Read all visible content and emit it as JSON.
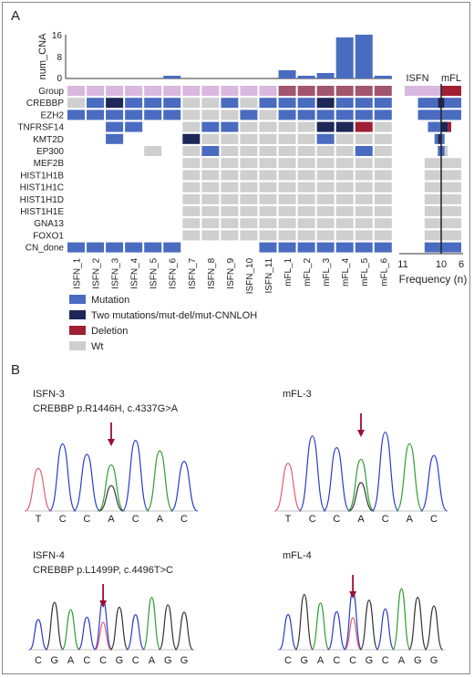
{
  "panel_a": {
    "label": "A",
    "num_cna": {
      "axis_label": "num_CNA",
      "ticks": [
        "16",
        "8",
        "0"
      ],
      "ylim": [
        0,
        16
      ],
      "values": [
        0,
        0,
        0,
        0,
        0,
        1,
        0,
        0,
        0,
        0,
        0,
        3,
        1,
        2,
        15,
        16,
        1
      ]
    },
    "samples": [
      "ISFN_1",
      "ISFN_2",
      "ISFN_3",
      "ISFN_4",
      "ISFN_5",
      "ISFN_6",
      "ISFN_7",
      "ISFN_8",
      "ISFN_9",
      "ISFN_10",
      "ISFN_11",
      "mFL_1",
      "mFL_2",
      "mFL_3",
      "mFL_4",
      "mFL_5",
      "mFL_6"
    ],
    "rows": [
      "Group",
      "CREBBP",
      "EZH2",
      "TNFRSF14",
      "KMT2D",
      "EP300",
      "MEF2B",
      "HIST1H1B",
      "HIST1H1C",
      "HIST1H1D",
      "HIST1H1E",
      "GNA13",
      "FOXO1",
      "CN_done"
    ],
    "groups": [
      "I",
      "I",
      "I",
      "I",
      "I",
      "I",
      "I",
      "I",
      "I",
      "I",
      "I",
      "M",
      "M",
      "M",
      "M",
      "M",
      "M"
    ],
    "matrix": [
      [
        "W",
        "M",
        "D",
        "M",
        "M",
        "M",
        "W",
        "W",
        "M",
        "W",
        "M",
        "M",
        "M",
        "D",
        "M",
        "M",
        "M"
      ],
      [
        "M",
        "M",
        "M",
        "M",
        "M",
        "M",
        "W",
        "W",
        "W",
        "M",
        "W",
        "M",
        "M",
        "M",
        "M",
        "M",
        "M"
      ],
      [
        "N",
        "N",
        "M",
        "M",
        "N",
        "N",
        "W",
        "M",
        "M",
        "W",
        "W",
        "W",
        "W",
        "D",
        "D",
        "X",
        "W"
      ],
      [
        "N",
        "N",
        "M",
        "N",
        "N",
        "N",
        "D",
        "W",
        "W",
        "W",
        "W",
        "W",
        "W",
        "M",
        "W",
        "W",
        "W"
      ],
      [
        "N",
        "N",
        "N",
        "N",
        "W",
        "N",
        "W",
        "M",
        "W",
        "W",
        "W",
        "W",
        "W",
        "W",
        "W",
        "M",
        "W"
      ],
      [
        "N",
        "N",
        "N",
        "N",
        "N",
        "N",
        "W",
        "W",
        "W",
        "W",
        "W",
        "W",
        "W",
        "W",
        "W",
        "W",
        "W"
      ],
      [
        "N",
        "N",
        "N",
        "N",
        "N",
        "N",
        "W",
        "W",
        "W",
        "W",
        "W",
        "W",
        "W",
        "W",
        "W",
        "W",
        "W"
      ],
      [
        "N",
        "N",
        "N",
        "N",
        "N",
        "N",
        "W",
        "W",
        "W",
        "W",
        "W",
        "W",
        "W",
        "W",
        "W",
        "W",
        "W"
      ],
      [
        "N",
        "N",
        "N",
        "N",
        "N",
        "N",
        "W",
        "W",
        "W",
        "W",
        "W",
        "W",
        "W",
        "W",
        "W",
        "W",
        "W"
      ],
      [
        "N",
        "N",
        "N",
        "N",
        "N",
        "N",
        "W",
        "W",
        "W",
        "W",
        "W",
        "W",
        "W",
        "W",
        "W",
        "W",
        "W"
      ],
      [
        "N",
        "N",
        "N",
        "N",
        "N",
        "N",
        "W",
        "W",
        "W",
        "W",
        "W",
        "W",
        "W",
        "W",
        "W",
        "W",
        "W"
      ],
      [
        "N",
        "N",
        "N",
        "N",
        "N",
        "N",
        "W",
        "W",
        "W",
        "W",
        "W",
        "W",
        "W",
        "W",
        "W",
        "W",
        "W"
      ]
    ],
    "cn_done": [
      1,
      1,
      1,
      1,
      1,
      1,
      0,
      0,
      0,
      0,
      1,
      1,
      1,
      1,
      1,
      1,
      1
    ],
    "legend": [
      {
        "key": "M",
        "label": "Mutation"
      },
      {
        "key": "D",
        "label": "Two mutations/mut-del/mut-CNNLOH"
      },
      {
        "key": "X",
        "label": "Deletion"
      },
      {
        "key": "W",
        "label": "Wt"
      }
    ],
    "colors": {
      "M": "#4a6cc0",
      "D": "#1d2758",
      "X": "#a01f33",
      "W": "#cfcfcf",
      "isfn_group": "#d8b8de",
      "mfl_group": "#a2566e",
      "frequency_mfl": "#a01f33"
    },
    "frequency": {
      "left_label": "ISFN",
      "right_label": "mFL",
      "ticks": [
        "11",
        "10",
        "6"
      ],
      "axis_title": "Frequency (n)",
      "bars": [
        {
          "isfn": 11,
          "mfl": 6
        },
        {
          "isfn": 6,
          "mfl": 6
        },
        {
          "isfn": 6,
          "mfl": 6
        },
        {
          "isfn": 3,
          "mfl": 3
        },
        {
          "isfn": 1,
          "mfl": 1
        },
        {
          "isfn": 1,
          "mfl": 2
        },
        {
          "isfn": 5,
          "mfl": 6
        },
        {
          "isfn": 5,
          "mfl": 6
        },
        {
          "isfn": 5,
          "mfl": 6
        },
        {
          "isfn": 5,
          "mfl": 6
        },
        {
          "isfn": 5,
          "mfl": 6
        },
        {
          "isfn": 5,
          "mfl": 6
        },
        {
          "isfn": 5,
          "mfl": 6
        },
        {
          "isfn": 5,
          "mfl": 6
        }
      ]
    }
  },
  "panel_b": {
    "label": "B",
    "traces": [
      {
        "sample": "ISFN-3",
        "variant": "CREBBP p.R1446H, c.4337G>A",
        "bases": [
          "T",
          "C",
          "C",
          "A",
          "C",
          "A",
          "C"
        ],
        "highlight": 3
      },
      {
        "sample": "mFL-3",
        "variant": "",
        "bases": [
          "T",
          "C",
          "C",
          "A",
          "C",
          "A",
          "C"
        ],
        "highlight": 3
      },
      {
        "sample": "ISFN-4",
        "variant": "CREBBP p.L1499P, c.4496T>C",
        "bases": [
          "C",
          "G",
          "A",
          "C",
          "C",
          "G",
          "C",
          "A",
          "G",
          "G"
        ],
        "highlight": 4
      },
      {
        "sample": "mFL-4",
        "variant": "",
        "bases": [
          "C",
          "G",
          "A",
          "C",
          "C",
          "G",
          "C",
          "A",
          "G",
          "G"
        ],
        "highlight": 4
      }
    ]
  }
}
